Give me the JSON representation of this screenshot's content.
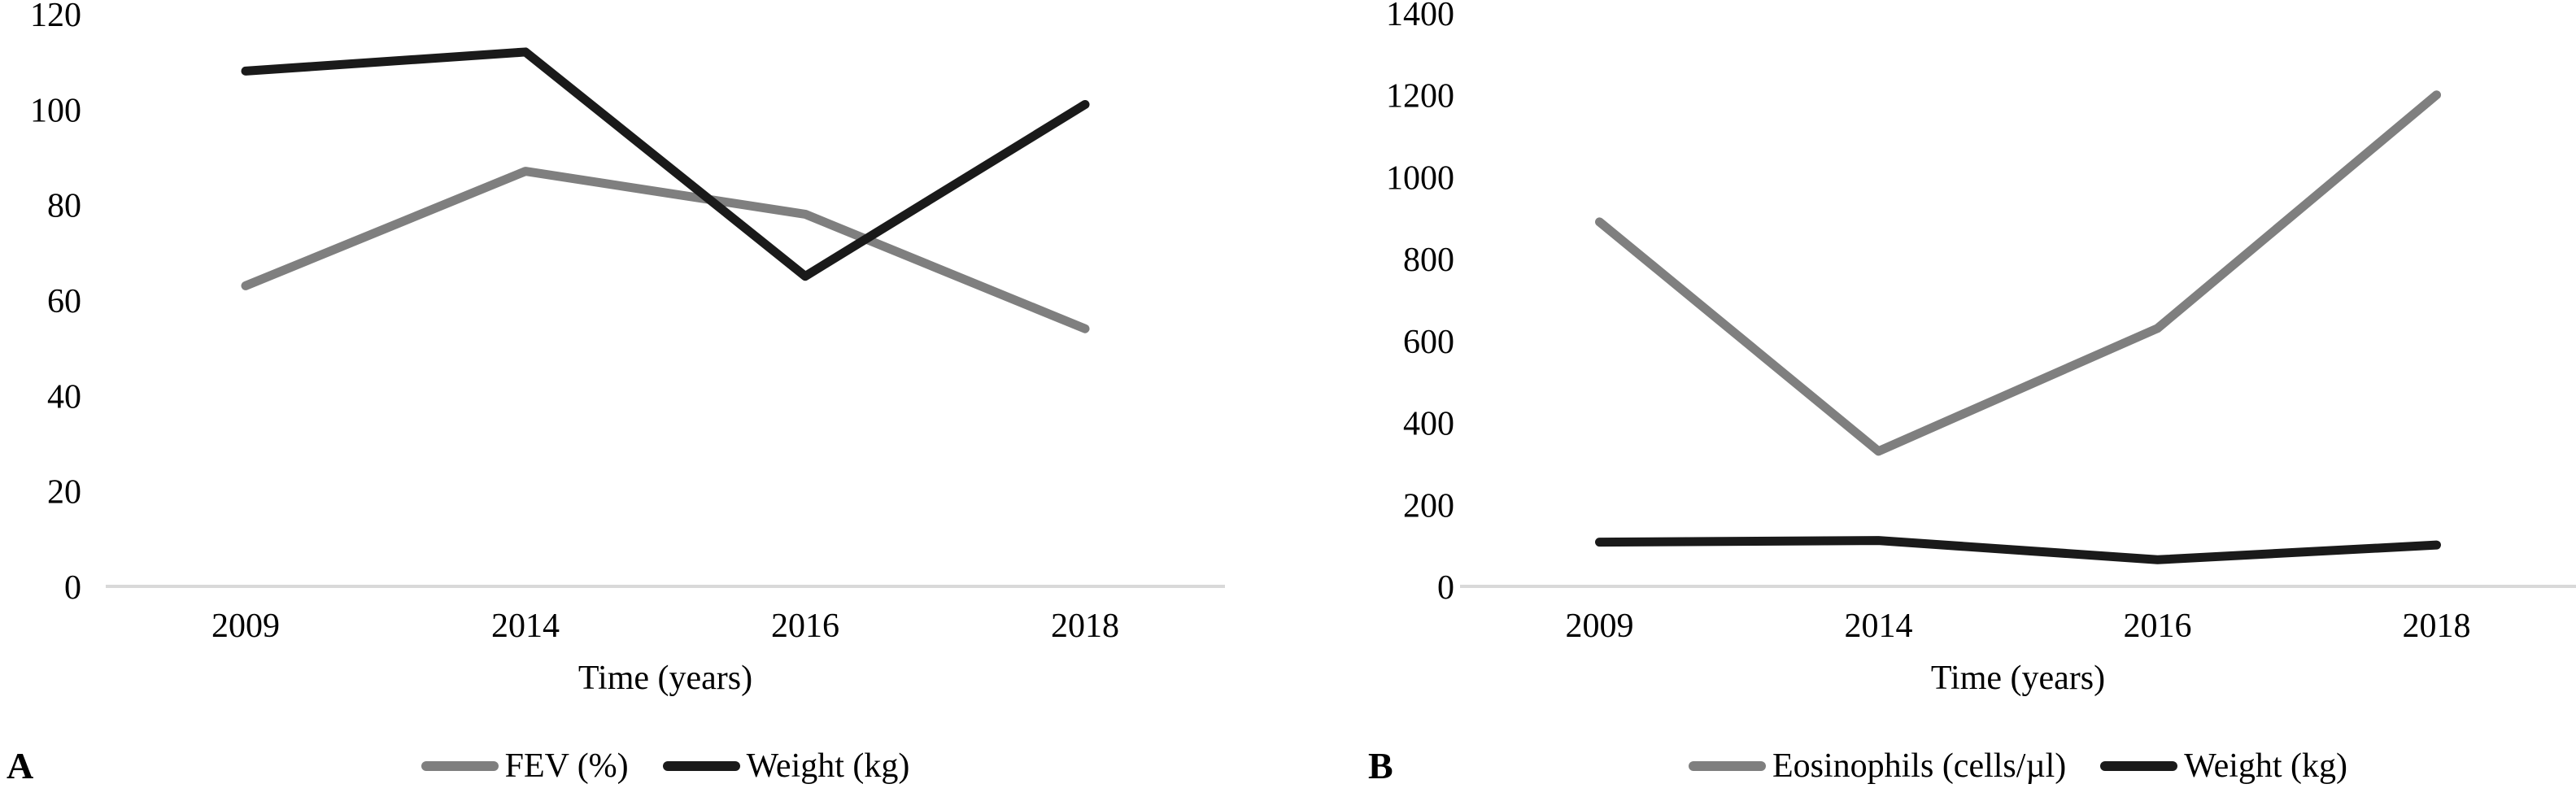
{
  "figure": {
    "background_color": "#ffffff",
    "text_color": "#000000",
    "axis_line_color": "#d9d9d9",
    "panels": [
      {
        "letter": "A",
        "xlabel": "Time (years)"
      },
      {
        "letter": "B",
        "xlabel": "Time (years)"
      }
    ]
  },
  "chart_data": [
    {
      "type": "line",
      "title": "",
      "categories": [
        "2009",
        "2014",
        "2016",
        "2018"
      ],
      "series": [
        {
          "name": "FEV (%)",
          "color": "#7f7f7f",
          "values": [
            63,
            87,
            78,
            54
          ]
        },
        {
          "name": "Weight (kg)",
          "color": "#1a1a1a",
          "values": [
            108,
            112,
            65,
            101
          ]
        }
      ],
      "xlabel": "Time (years)",
      "ylabel": "",
      "ylim": [
        0,
        120
      ],
      "ytick_step": 20,
      "grid": false,
      "legend_position": "bottom"
    },
    {
      "type": "line",
      "title": "",
      "categories": [
        "2009",
        "2014",
        "2016",
        "2018"
      ],
      "series": [
        {
          "name": "Eosinophils (cells/µl)",
          "color": "#7f7f7f",
          "values": [
            890,
            330,
            630,
            1200
          ]
        },
        {
          "name": "Weight (kg)",
          "color": "#1a1a1a",
          "values": [
            108,
            112,
            65,
            101
          ]
        }
      ],
      "xlabel": "Time (years)",
      "ylabel": "",
      "ylim": [
        0,
        1400
      ],
      "ytick_step": 200,
      "grid": false,
      "legend_position": "bottom"
    }
  ]
}
